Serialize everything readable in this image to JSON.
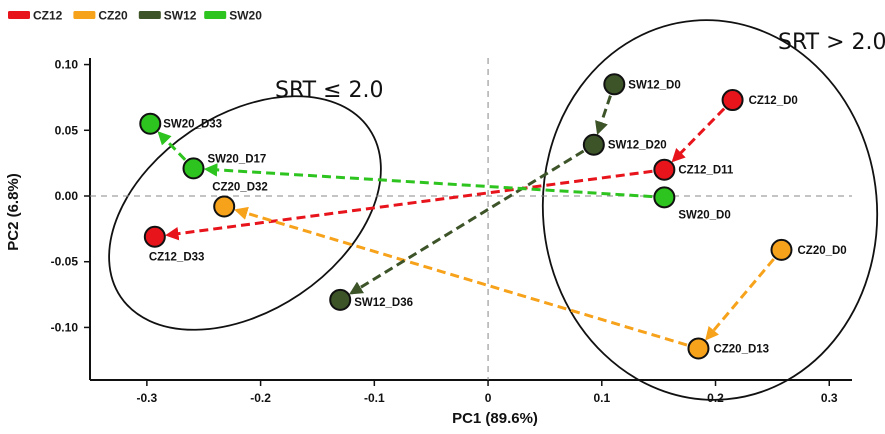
{
  "chart_data": {
    "type": "scatter",
    "xlabel": "PC1 (89.6%)",
    "ylabel": "PC2 (6.8%)",
    "xlim": [
      -0.35,
      0.32
    ],
    "ylim": [
      -0.14,
      0.105
    ],
    "xticks": [
      -0.3,
      -0.2,
      -0.1,
      0,
      0.1,
      0.2,
      0.3
    ],
    "xtick_labels": [
      "-0.3",
      "-0.2",
      "-0.1",
      "0",
      "0.1",
      "0.2",
      "0.3"
    ],
    "yticks": [
      0.1,
      0.05,
      0.0,
      -0.05,
      -0.1
    ],
    "ytick_labels": [
      "0.10",
      "0.05",
      "0.00",
      "-0.05",
      "-0.10"
    ],
    "grid": false,
    "reference_lines": "dashed lines at x=0 and y=0",
    "legend_placement": "top-left",
    "legend": [
      {
        "name": "CZ12",
        "color": "#e8141c"
      },
      {
        "name": "CZ20",
        "color": "#f7a21b"
      },
      {
        "name": "SW12",
        "color": "#3d5429"
      },
      {
        "name": "SW20",
        "color": "#2ec41f"
      }
    ],
    "series": [
      {
        "name": "CZ12",
        "color": "#e8141c",
        "points": [
          {
            "label": "CZ12_D0",
            "x": 0.215,
            "y": 0.073
          },
          {
            "label": "CZ12_D11",
            "x": 0.155,
            "y": 0.02
          },
          {
            "label": "CZ12_D33",
            "x": -0.293,
            "y": -0.031
          }
        ]
      },
      {
        "name": "CZ20",
        "color": "#f7a21b",
        "points": [
          {
            "label": "CZ20_D0",
            "x": 0.258,
            "y": -0.041
          },
          {
            "label": "CZ20_D13",
            "x": 0.185,
            "y": -0.116
          },
          {
            "label": "CZ20_D32",
            "x": -0.232,
            "y": -0.008
          }
        ]
      },
      {
        "name": "SW12",
        "color": "#3d5429",
        "points": [
          {
            "label": "SW12_D0",
            "x": 0.111,
            "y": 0.085
          },
          {
            "label": "SW12_D20",
            "x": 0.093,
            "y": 0.039
          },
          {
            "label": "SW12_D36",
            "x": -0.13,
            "y": -0.079
          }
        ]
      },
      {
        "name": "SW20",
        "color": "#2ec41f",
        "points": [
          {
            "label": "SW20_D0",
            "x": 0.155,
            "y": -0.001
          },
          {
            "label": "SW20_D17",
            "x": -0.259,
            "y": 0.021
          },
          {
            "label": "SW20_D33",
            "x": -0.297,
            "y": 0.055
          }
        ]
      }
    ],
    "annotations": [
      "SRT > 2.0",
      "SRT ≤ 2.0"
    ]
  }
}
